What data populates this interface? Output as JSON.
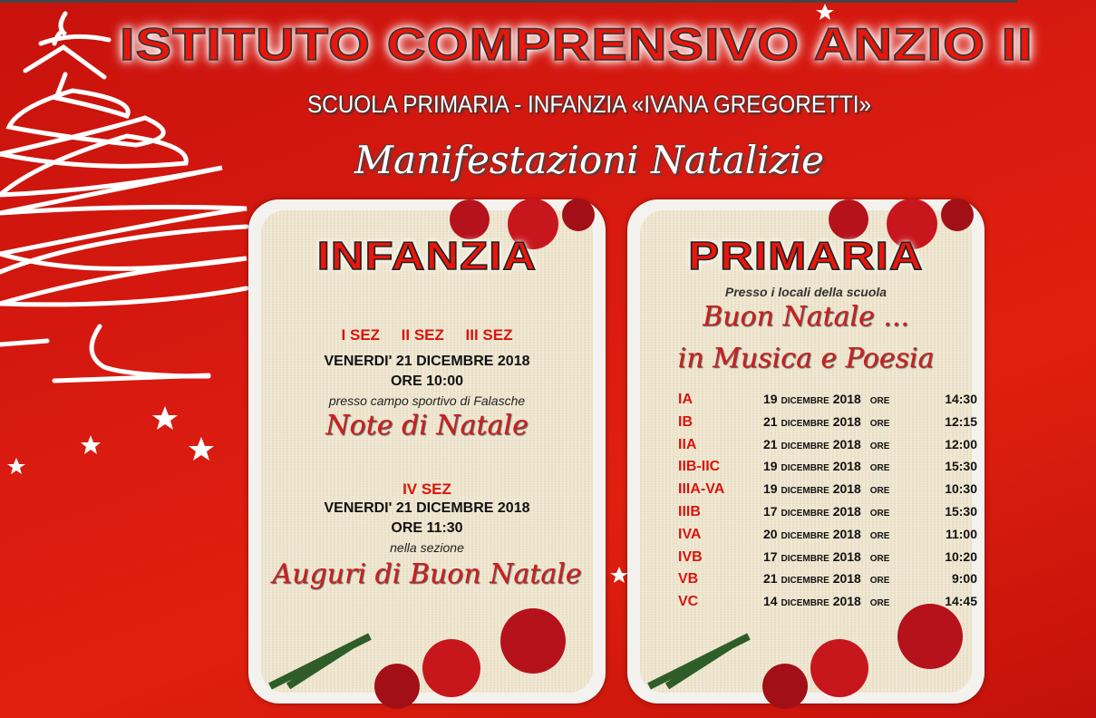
{
  "header": {
    "title": "ISTITUTO COMPRENSIVO ANZIO II",
    "subtitle": "SCUOLA PRIMARIA  -  INFANZIA  «IVANA GREGORETTI»",
    "event_title": "Manifestazioni Natalizie"
  },
  "infanzia": {
    "heading": "INFANZIA",
    "sections_line": "I SEZ     II SEZ     III SEZ",
    "event1": {
      "date": "VENERDI' 21 DICEMBRE 2018",
      "time": "ORE 10:00",
      "place": "presso campo sportivo di Falasche",
      "name": "Note di Natale"
    },
    "section2": "IV SEZ",
    "event2": {
      "date": "VENERDI' 21 DICEMBRE 2018",
      "time": "ORE 11:30",
      "place": "nella sezione",
      "name": "Auguri di Buon Natale"
    }
  },
  "primaria": {
    "heading": "PRIMARIA",
    "location": "Presso i locali della scuola",
    "name_line1": "Buon Natale ...",
    "name_line2": "in  Musica e Poesia",
    "schedule": [
      {
        "class": "IA",
        "day": "19",
        "month": "DICEMBRE",
        "year": "2018",
        "ore": "ORE",
        "time": "14:30"
      },
      {
        "class": "IB",
        "day": "21",
        "month": "DICEMBRE",
        "year": "2018",
        "ore": "ORE",
        "time": "12:15"
      },
      {
        "class": "IIA",
        "day": "21",
        "month": "DICEMBRE",
        "year": "2018",
        "ore": "ORE",
        "time": "12:00"
      },
      {
        "class": "IIB-IIC",
        "day": "19",
        "month": "DICEMBRE",
        "year": "2018",
        "ore": "ORE",
        "time": "15:30"
      },
      {
        "class": "IIIA-VA",
        "day": "19",
        "month": "DICEMBRE",
        "year": "2018",
        "ore": "ORE",
        "time": "10:30"
      },
      {
        "class": "IIIB",
        "day": "17",
        "month": "DICEMBRE",
        "year": "2018",
        "ore": "ORE",
        "time": "15:30"
      },
      {
        "class": "IVA",
        "day": "20",
        "month": "DICEMBRE",
        "year": "2018",
        "ore": "ORE",
        "time": "11:00"
      },
      {
        "class": "IVB",
        "day": "17",
        "month": "DICEMBRE",
        "year": "2018",
        "ore": "ORE",
        "time": "10:20"
      },
      {
        "class": "VB",
        "day": "21",
        "month": "DICEMBRE",
        "year": "2018",
        "ore": "ORE",
        "time": "9:00"
      },
      {
        "class": "VC",
        "day": "14",
        "month": "DICEMBRE",
        "year": "2018",
        "ore": "ORE",
        "time": "14:45"
      }
    ]
  },
  "colors": {
    "background": "#d81a10",
    "accent_red": "#e8160c",
    "card": "#ece3cb"
  }
}
